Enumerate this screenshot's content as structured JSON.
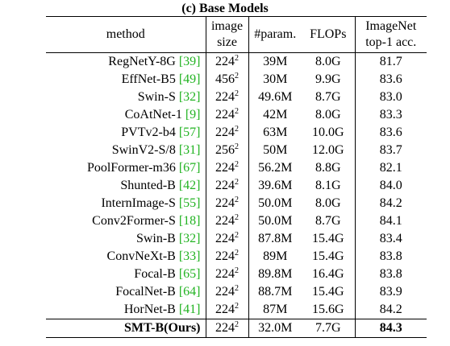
{
  "table": {
    "title": "(c) Base Models",
    "headers": {
      "method": "method",
      "image_size": [
        "image",
        "size"
      ],
      "params": "#param.",
      "flops": "FLOPs",
      "acc": [
        "ImageNet",
        "top-1 acc."
      ]
    },
    "rows": [
      {
        "name": "RegNetY-8G",
        "ref": "[39]",
        "res": "224",
        "exp": "2",
        "params": "39M",
        "flops": "8.0G",
        "acc": "81.7"
      },
      {
        "name": "EffNet-B5",
        "ref": "[49]",
        "res": "456",
        "exp": "2",
        "params": "30M",
        "flops": "9.9G",
        "acc": "83.6"
      },
      {
        "name": "Swin-S",
        "ref": "[32]",
        "res": "224",
        "exp": "2",
        "params": "49.6M",
        "flops": "8.7G",
        "acc": "83.0"
      },
      {
        "name": "CoAtNet-1",
        "ref": "[9]",
        "res": "224",
        "exp": "2",
        "params": "42M",
        "flops": "8.0G",
        "acc": "83.3"
      },
      {
        "name": "PVTv2-b4",
        "ref": "[57]",
        "res": "224",
        "exp": "2",
        "params": "63M",
        "flops": "10.0G",
        "acc": "83.6"
      },
      {
        "name": "SwinV2-S/8",
        "ref": "[31]",
        "res": "256",
        "exp": "2",
        "params": "50M",
        "flops": "12.0G",
        "acc": "83.7"
      },
      {
        "name": "PoolFormer-m36",
        "ref": "[67]",
        "res": "224",
        "exp": "2",
        "params": "56.2M",
        "flops": "8.8G",
        "acc": "82.1"
      },
      {
        "name": "Shunted-B",
        "ref": "[42]",
        "res": "224",
        "exp": "2",
        "params": "39.6M",
        "flops": "8.1G",
        "acc": "84.0"
      },
      {
        "name": "InternImage-S",
        "ref": "[55]",
        "res": "224",
        "exp": "2",
        "params": "50.0M",
        "flops": "8.0G",
        "acc": "84.2"
      },
      {
        "name": "Conv2Former-S",
        "ref": "[18]",
        "res": "224",
        "exp": "2",
        "params": "50.0M",
        "flops": "8.7G",
        "acc": "84.1"
      },
      {
        "name": "Swin-B",
        "ref": "[32]",
        "res": "224",
        "exp": "2",
        "params": "87.8M",
        "flops": "15.4G",
        "acc": "83.4"
      },
      {
        "name": "ConvNeXt-B",
        "ref": "[33]",
        "res": "224",
        "exp": "2",
        "params": "89M",
        "flops": "15.4G",
        "acc": "83.8"
      },
      {
        "name": "Focal-B",
        "ref": "[65]",
        "res": "224",
        "exp": "2",
        "params": "89.8M",
        "flops": "16.4G",
        "acc": "83.8"
      },
      {
        "name": "FocalNet-B",
        "ref": "[64]",
        "res": "224",
        "exp": "2",
        "params": "88.7M",
        "flops": "15.4G",
        "acc": "83.9"
      },
      {
        "name": "HorNet-B",
        "ref": "[41]",
        "res": "224",
        "exp": "2",
        "params": "87M",
        "flops": "15.6G",
        "acc": "84.2"
      }
    ],
    "ours": {
      "name": "SMT-B(Ours)",
      "res": "224",
      "exp": "2",
      "params": "32.0M",
      "flops": "7.7G",
      "acc": "84.3"
    },
    "ref_color": "#22b322"
  }
}
